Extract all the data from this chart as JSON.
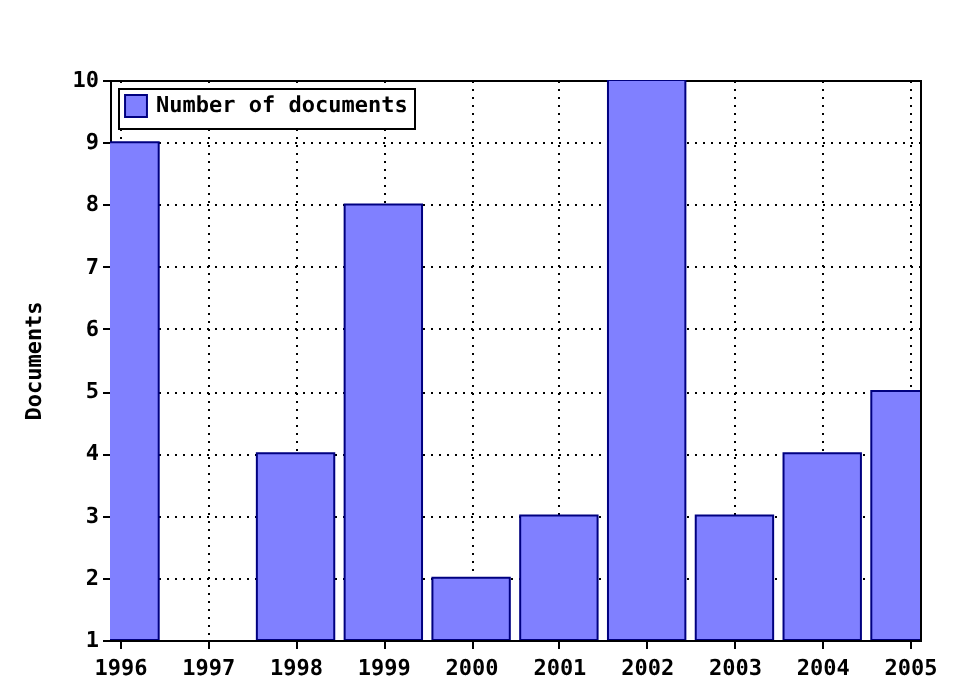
{
  "chart_data": {
    "type": "bar",
    "x": [
      1996,
      1997,
      1998,
      1999,
      2000,
      2001,
      2002,
      2003,
      2004,
      2005
    ],
    "series": [
      {
        "name": "Number of documents",
        "color": "#8080ff",
        "values": [
          9,
          null,
          4,
          8,
          2,
          3,
          10,
          3,
          4,
          5
        ]
      }
    ],
    "ylabel": "Documents",
    "xlim": [
      1996,
      2005
    ],
    "xticks": [
      1996,
      1997,
      1998,
      1999,
      2000,
      2001,
      2002,
      2003,
      2004,
      2005
    ],
    "ylim": [
      1,
      10
    ],
    "yticks": [
      1,
      2,
      3,
      4,
      5,
      6,
      7,
      8,
      9,
      10
    ],
    "grid": true,
    "legend": "top left"
  }
}
